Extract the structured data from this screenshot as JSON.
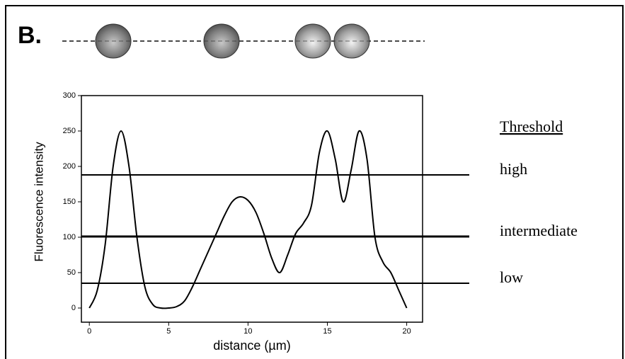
{
  "chart_data": {
    "type": "line",
    "panel_label": "B.",
    "y_label": "Fluorescence intensity",
    "x_label": "distance (µm)",
    "threshold_heading": "Threshold",
    "thresholds": [
      {
        "name": "high",
        "value": 188
      },
      {
        "name": "intermediate",
        "value": 101
      },
      {
        "name": "low",
        "value": 35
      }
    ],
    "x": [
      0,
      0.5,
      1,
      1.5,
      2,
      2.5,
      3,
      3.5,
      4,
      4.5,
      5,
      5.5,
      6,
      6.5,
      7,
      7.5,
      8,
      8.5,
      9,
      9.5,
      10,
      10.5,
      11,
      11.5,
      12,
      12.5,
      13,
      13.5,
      14,
      14.5,
      15,
      15.5,
      16,
      16.5,
      17,
      17.5,
      18,
      18.5,
      19,
      19.5,
      20
    ],
    "series": [
      {
        "color": "#000000",
        "values": [
          0,
          25,
          90,
          200,
          250,
          200,
          100,
          30,
          5,
          0,
          0,
          2,
          10,
          30,
          55,
          80,
          105,
          130,
          150,
          157,
          152,
          135,
          105,
          70,
          50,
          75,
          105,
          120,
          145,
          220,
          250,
          210,
          150,
          195,
          250,
          210,
          100,
          65,
          50,
          25,
          0
        ]
      }
    ],
    "xlim": [
      -0.5,
      21
    ],
    "ylim": [
      -20,
      300
    ],
    "xticks": [
      0,
      5,
      10,
      15,
      20
    ],
    "yticks": [
      0,
      50,
      100,
      150,
      200,
      250,
      300
    ]
  }
}
